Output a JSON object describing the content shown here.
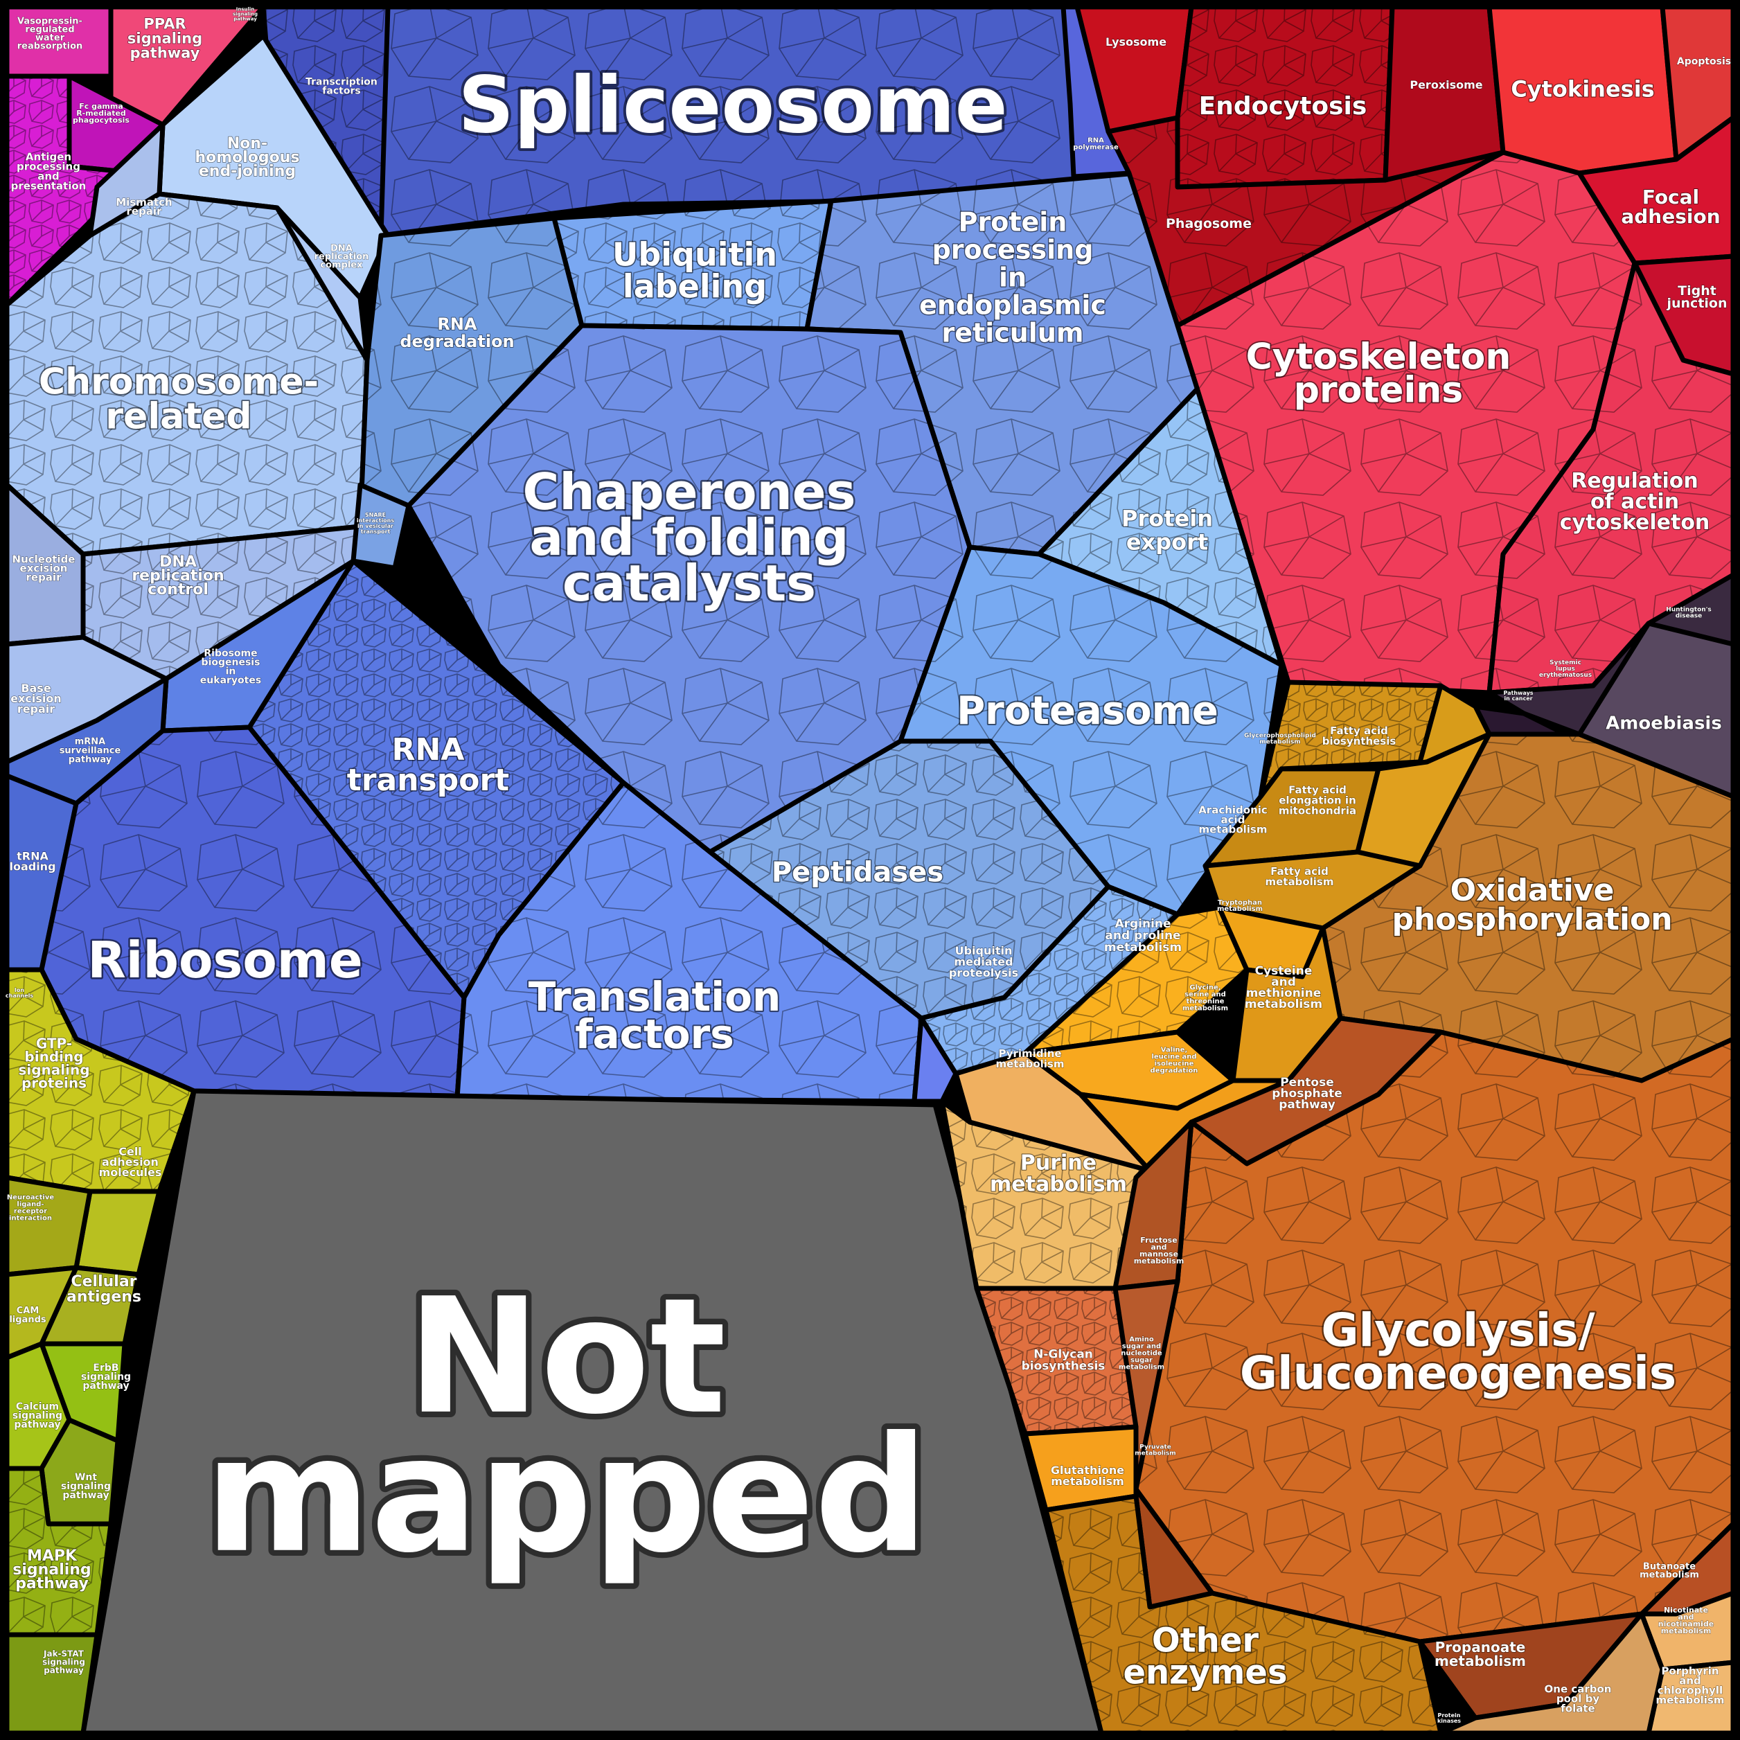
{
  "labels": {
    "spliceosome": [
      "Spliceosome"
    ],
    "chaperones": [
      "Chaperones",
      "and folding",
      "catalysts"
    ],
    "not_mapped": [
      "Not",
      "mapped"
    ],
    "glycolysis": [
      "Glycolysis/",
      "Gluconeogenesis"
    ],
    "ribosome": [
      "Ribosome"
    ],
    "proteasome": [
      "Proteasome"
    ],
    "translation_factors": [
      "Translation",
      "factors"
    ],
    "rna_transport": [
      "RNA",
      "transport"
    ],
    "cytoskeleton": [
      "Cytoskeleton",
      "proteins"
    ],
    "oxidative": [
      "Oxidative",
      "phosphorylation"
    ],
    "chromosome": [
      "Chromosome-",
      "related"
    ],
    "protein_processing": [
      "Protein",
      "processing",
      "in",
      "endoplasmic",
      "reticulum"
    ],
    "ubiquitin_labeling": [
      "Ubiquitin",
      "labeling"
    ],
    "peptidases": [
      "Peptidases"
    ],
    "endocytosis": [
      "Endocytosis"
    ],
    "cytokinesis": [
      "Cytokinesis"
    ],
    "other_enzymes": [
      "Other",
      "enzymes"
    ],
    "purine": [
      "Purine",
      "metabolism"
    ],
    "regulation_actin": [
      "Regulation",
      "of actin",
      "cytoskeleton"
    ],
    "focal_adhesion": [
      "Focal",
      "adhesion"
    ],
    "protein_export": [
      "Protein",
      "export"
    ],
    "amoebiasis": [
      "Amoebiasis"
    ],
    "mapk": [
      "MAPK",
      "signaling",
      "pathway"
    ],
    "cellular_antigens": [
      "Cellular",
      "antigens"
    ],
    "gtp_binding": [
      "GTP-",
      "binding",
      "signaling",
      "proteins"
    ],
    "ppar": [
      "PPAR",
      "signaling",
      "pathway"
    ],
    "rna_degradation": [
      "RNA",
      "degradation"
    ],
    "non_homologous": [
      "Non-",
      "homologous",
      "end-joining"
    ],
    "dna_replication_control": [
      "DNA",
      "replication",
      "control"
    ],
    "propanoate": [
      "Propanoate",
      "metabolism"
    ],
    "tight_junction": [
      "Tight",
      "junction"
    ],
    "phagosome": [
      "Phagosome"
    ],
    "lysosome": [
      "Lysosome"
    ],
    "peroxisome": [
      "Peroxisome"
    ],
    "apoptosis": [
      "Apoptosis"
    ],
    "arginine": [
      "Arginine",
      "and proline",
      "metabolism"
    ],
    "cysteine": [
      "Cysteine",
      "and",
      "methionine",
      "metabolism"
    ],
    "fatty_acid_elongation": [
      "Fatty acid",
      "elongation in",
      "mitochondria"
    ],
    "fatty_acid_biosynthesis": [
      "Fatty acid",
      "biosynthesis"
    ],
    "fatty_acid_metabolism": [
      "Fatty acid",
      "metabolism"
    ],
    "arachidonic": [
      "Arachidonic",
      "acid",
      "metabolism"
    ],
    "pentose": [
      "Pentose",
      "phosphate",
      "pathway"
    ],
    "n_glycan": [
      "N-Glycan",
      "biosynthesis"
    ],
    "glutathione": [
      "Glutathione",
      "metabolism"
    ],
    "pyrimidine": [
      "Pyrimidine",
      "metabolism"
    ],
    "ubiquitin_mediated": [
      "Ubiquitin",
      "mediated",
      "proteolysis"
    ],
    "ribosome_biogenesis": [
      "Ribosome",
      "biogenesis",
      "in",
      "eukaryotes"
    ],
    "mrna_surveillance": [
      "mRNA",
      "surveillance",
      "pathway"
    ],
    "trna_loading": [
      "tRNA",
      "loading"
    ],
    "nucleotide_excision": [
      "Nucleotide",
      "excision",
      "repair"
    ],
    "base_excision": [
      "Base",
      "excision",
      "repair"
    ],
    "mismatch": [
      "Mismatch",
      "repair"
    ],
    "dna_replication_complex": [
      "DNA",
      "replication",
      "complex"
    ],
    "transcription_factors": [
      "Transcription",
      "factors"
    ],
    "rna_polymerase": [
      "RNA",
      "polymerase"
    ],
    "vasopressin": [
      "Vasopressin-",
      "regulated",
      "water",
      "reabsorption"
    ],
    "fc_gamma": [
      "Fc gamma",
      "R-mediated",
      "phagocytosis"
    ],
    "antigen_processing": [
      "Antigen",
      "processing",
      "and",
      "presentation"
    ],
    "cell_adhesion": [
      "Cell",
      "adhesion",
      "molecules"
    ],
    "neuroactive": [
      "Neuroactive",
      "ligand-",
      "receptor",
      "interaction"
    ],
    "cam_ligands": [
      "CAM",
      "ligands"
    ],
    "erbb": [
      "ErbB",
      "signaling",
      "pathway"
    ],
    "calcium": [
      "Calcium",
      "signaling",
      "pathway"
    ],
    "wnt": [
      "Wnt",
      "signaling",
      "pathway"
    ],
    "jak_stat": [
      "Jak-STAT",
      "signaling",
      "pathway"
    ],
    "fructose": [
      "Fructose",
      "and",
      "mannose",
      "metabolism"
    ],
    "amino_sugar": [
      "Amino",
      "sugar and",
      "nucleotide",
      "sugar",
      "metabolism"
    ],
    "pyruvate": [
      "Pyruvate",
      "metabolism"
    ],
    "butanoate": [
      "Butanoate",
      "metabolism"
    ],
    "nicotinate": [
      "Nicotinate",
      "and",
      "nicotinamide",
      "metabolism"
    ],
    "porphyrin": [
      "Porphyrin",
      "and",
      "chlorophyll",
      "metabolism"
    ],
    "one_carbon": [
      "One carbon",
      "pool by",
      "folate"
    ],
    "tryptophan": [
      "Tryptophan",
      "metabolism"
    ],
    "glycine": [
      "Glycine,",
      "serine and",
      "threonine",
      "metabolism"
    ],
    "valine": [
      "Valine,",
      "leucine and",
      "isoleucine",
      "degradation"
    ],
    "glycerophospholipid": [
      "Glycerophospholipid",
      "metabolism"
    ],
    "huntingtons": [
      "Huntington's",
      "disease"
    ],
    "lupus": [
      "Systemic",
      "lupus",
      "erythematosus"
    ],
    "pathways_cancer": [
      "Pathways",
      "in cancer"
    ],
    "snare": [
      "SNARE",
      "interactions",
      "in vesicular",
      "transport"
    ],
    "ion_channels": [
      "Ion",
      "channels"
    ],
    "insulin": [
      "Insulin",
      "signaling",
      "pathway"
    ],
    "protein_kinases": [
      "Protein",
      "kinases"
    ]
  },
  "colors": {
    "blue_dark": "#4a5ec8",
    "blue_mid": "#6e8ee6",
    "blue_light": "#a9c4f5",
    "red": "#e6284a",
    "crimson": "#b8101e",
    "orange": "#d77b2a",
    "amber": "#f0a21e",
    "olive": "#aab41e",
    "magenta": "#d41ed0",
    "gray": "#656565",
    "purple": "#4a3a55"
  }
}
